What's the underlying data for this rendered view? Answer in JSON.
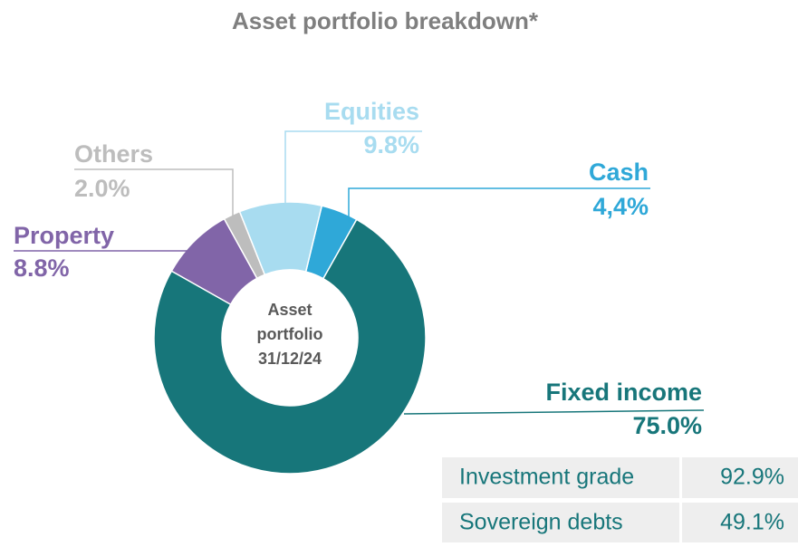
{
  "chart_data": {
    "type": "donut",
    "title": "Asset portfolio breakdown*",
    "center_label": [
      "Asset",
      "portfolio",
      "31/12/24"
    ],
    "categories": [
      "Cash",
      "Fixed income",
      "Property",
      "Others",
      "Equities"
    ],
    "values": [
      4.4,
      75.0,
      8.8,
      2.0,
      9.8
    ],
    "value_labels": [
      "4,4%",
      "75.0%",
      "8.8%",
      "2.0%",
      "9.8%"
    ],
    "colors": [
      "#2fa8d8",
      "#17767a",
      "#8165a8",
      "#bdbdbd",
      "#a8dcf0"
    ],
    "table": {
      "rows": [
        [
          "Investment grade",
          "92.9%"
        ],
        [
          "Sovereign debts",
          "49.1%"
        ]
      ]
    }
  }
}
